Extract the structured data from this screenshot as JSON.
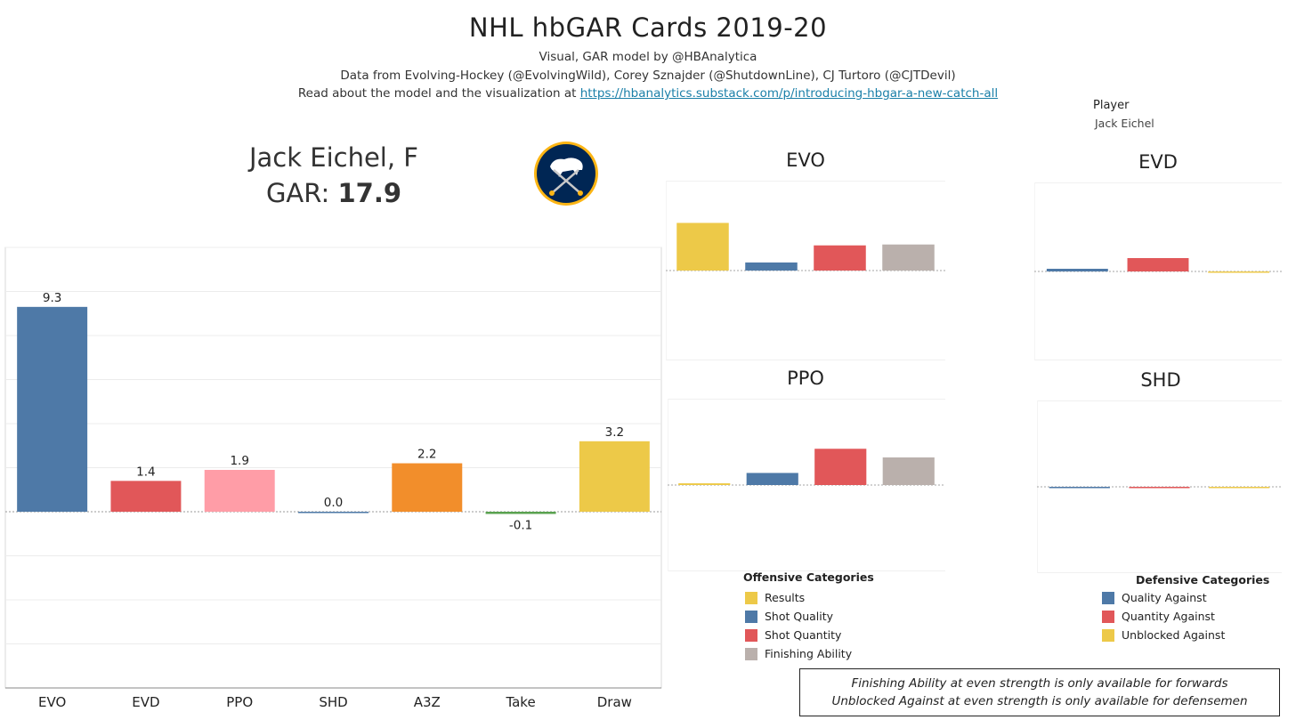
{
  "header": {
    "title": "NHL hbGAR Cards 2019-20",
    "line1": "Visual, GAR model by @HBAnalytica",
    "line2": "Data from Evolving-Hockey (@EvolvingWild), Corey Sznajder (@ShutdownLine), CJ Turtoro (@CJTDevil)",
    "line3_prefix": "Read about the model and the visualization at ",
    "line3_link": "https://hbanalytics.substack.com/p/introducing-hbgar-a-new-catch-all"
  },
  "filter": {
    "label": "Player",
    "value": "Jack Eichel"
  },
  "player": {
    "name_line": "Jack Eichel, F",
    "gar_prefix": "GAR: ",
    "gar_value": "17.9",
    "logo_icon": "sabres-logo-icon"
  },
  "colors": {
    "EVO": "#4e79a7",
    "EVD": "#e15759",
    "PPO": "#ff9da7",
    "SHD": "#4e79a7",
    "A3Z": "#f28e2b",
    "Take": "#59a14f",
    "Draw": "#edc948",
    "results": "#edc948",
    "shot_quality": "#4e79a7",
    "shot_quantity": "#e15759",
    "finishing": "#bab0ac"
  },
  "chart_data": [
    {
      "type": "bar",
      "categories": [
        "EVO",
        "EVD",
        "PPO",
        "SHD",
        "A3Z",
        "Take",
        "Draw"
      ],
      "values": [
        9.3,
        1.4,
        1.9,
        0.0,
        2.2,
        -0.1,
        3.2
      ],
      "data_labels": [
        "9.3",
        "1.4",
        "1.9",
        "0.0",
        "2.2",
        "-0.1",
        "3.2"
      ],
      "ylim": [
        -8,
        12
      ],
      "grid": true
    },
    {
      "type": "bar",
      "title": "EVO",
      "categories": [
        "Results",
        "Shot Quality",
        "Shot Quantity",
        "Finishing Ability"
      ],
      "values": [
        5.3,
        0.9,
        2.8,
        2.9
      ],
      "ylim": [
        -10,
        10
      ]
    },
    {
      "type": "bar",
      "title": "EVD",
      "categories": [
        "Quality Against",
        "Quantity Against",
        "Unblocked Against"
      ],
      "values": [
        0.3,
        1.5,
        -0.1
      ],
      "ylim": [
        -10,
        10
      ]
    },
    {
      "type": "bar",
      "title": "PPO",
      "categories": [
        "Results",
        "Shot Quality",
        "Shot Quantity",
        "Finishing Ability"
      ],
      "values": [
        0.1,
        0.7,
        2.1,
        1.6
      ],
      "ylim": [
        -5,
        5
      ]
    },
    {
      "type": "bar",
      "title": "SHD",
      "categories": [
        "Quality Against",
        "Quantity Against",
        "Unblocked Against"
      ],
      "values": [
        -0.05,
        -0.05,
        -0.05
      ],
      "ylim": [
        -5,
        5
      ]
    }
  ],
  "legends": {
    "offensive": {
      "title": "Offensive Categories",
      "items": [
        {
          "label": "Results",
          "color": "#edc948"
        },
        {
          "label": "Shot Quality",
          "color": "#4e79a7"
        },
        {
          "label": "Shot Quantity",
          "color": "#e15759"
        },
        {
          "label": "Finishing Ability",
          "color": "#bab0ac"
        }
      ]
    },
    "defensive": {
      "title": "Defensive Categories",
      "items": [
        {
          "label": "Quality Against",
          "color": "#4e79a7"
        },
        {
          "label": "Quantity Against",
          "color": "#e15759"
        },
        {
          "label": "Unblocked Against",
          "color": "#edc948"
        }
      ]
    }
  },
  "note": {
    "line1": "Finishing Ability at even strength is only available for forwards",
    "line2": "Unblocked Against at even strength is only available for defensemen"
  }
}
